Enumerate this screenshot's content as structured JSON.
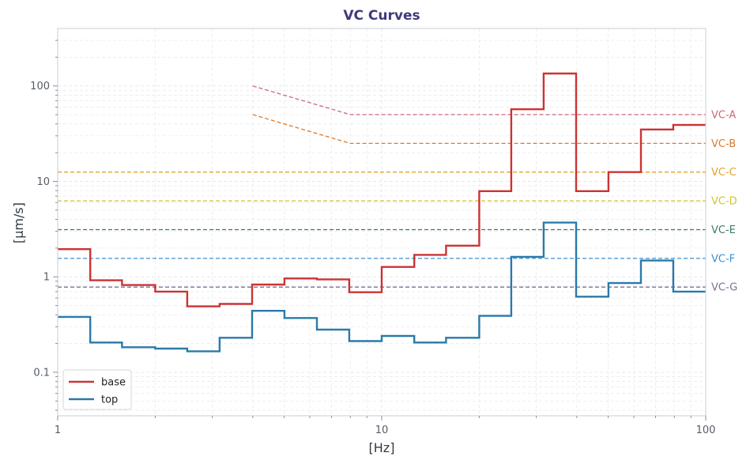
{
  "chart_data": {
    "type": "line",
    "title": "VC Curves",
    "xlabel": "[Hz]",
    "ylabel": "[µm/s]",
    "xscale": "log",
    "yscale": "log",
    "xlim": [
      1,
      100
    ],
    "ylim": [
      0.035,
      400
    ],
    "grid": true,
    "legend_position": "lower-left",
    "x_ticks": [
      {
        "value": 1,
        "label": "1"
      },
      {
        "value": 10,
        "label": "10"
      },
      {
        "value": 100,
        "label": "100"
      }
    ],
    "y_ticks": [
      {
        "value": 0.1,
        "label": "0.1"
      },
      {
        "value": 1,
        "label": "1"
      },
      {
        "value": 10,
        "label": "10"
      },
      {
        "value": 100,
        "label": "100"
      }
    ],
    "band_edges": [
      1,
      1.26,
      1.58,
      2,
      2.51,
      3.16,
      3.98,
      5.01,
      6.31,
      7.94,
      10,
      12.6,
      15.8,
      20,
      25.1,
      31.6,
      39.8,
      50.1,
      63.1,
      79.4,
      100
    ],
    "series": [
      {
        "name": "base",
        "color": "#cc3333",
        "style": "step",
        "values": [
          1.95,
          0.92,
          0.82,
          0.7,
          0.49,
          0.52,
          0.83,
          0.96,
          0.94,
          0.69,
          1.27,
          1.7,
          2.12,
          7.9,
          57,
          135,
          7.9,
          12.5,
          35,
          39
        ]
      },
      {
        "name": "top",
        "color": "#2a7aaa",
        "style": "step",
        "values": [
          0.38,
          0.205,
          0.183,
          0.177,
          0.166,
          0.23,
          0.44,
          0.37,
          0.28,
          0.212,
          0.24,
          0.205,
          0.23,
          0.39,
          1.62,
          3.7,
          0.62,
          0.86,
          1.48,
          0.7
        ]
      }
    ],
    "reference_curves": [
      {
        "name": "VC-A",
        "color": "#cc6677",
        "points": [
          [
            4,
            100
          ],
          [
            8,
            50
          ],
          [
            100,
            50
          ]
        ]
      },
      {
        "name": "VC-B",
        "color": "#d97b2b",
        "points": [
          [
            4,
            50
          ],
          [
            8,
            25
          ],
          [
            100,
            25
          ]
        ]
      },
      {
        "name": "VC-C",
        "color": "#e0a42a",
        "points": [
          [
            1,
            12.5
          ],
          [
            100,
            12.5
          ]
        ]
      },
      {
        "name": "VC-D",
        "color": "#d4c228",
        "points": [
          [
            1,
            6.25
          ],
          [
            100,
            6.25
          ]
        ]
      },
      {
        "name": "VC-E",
        "color": "#3d7a63",
        "points": [
          [
            1,
            3.12
          ],
          [
            100,
            3.12
          ]
        ]
      },
      {
        "name": "VC-F",
        "color": "#3b8fd0",
        "points": [
          [
            1,
            1.56
          ],
          [
            100,
            1.56
          ]
        ]
      },
      {
        "name": "VC-G",
        "color": "#7c7292",
        "points": [
          [
            1,
            0.78
          ],
          [
            100,
            0.78
          ]
        ]
      }
    ]
  },
  "colors": {
    "title": "#3d3a7c",
    "axis": "#c8ccd4",
    "grid": "#e6e8ec"
  }
}
